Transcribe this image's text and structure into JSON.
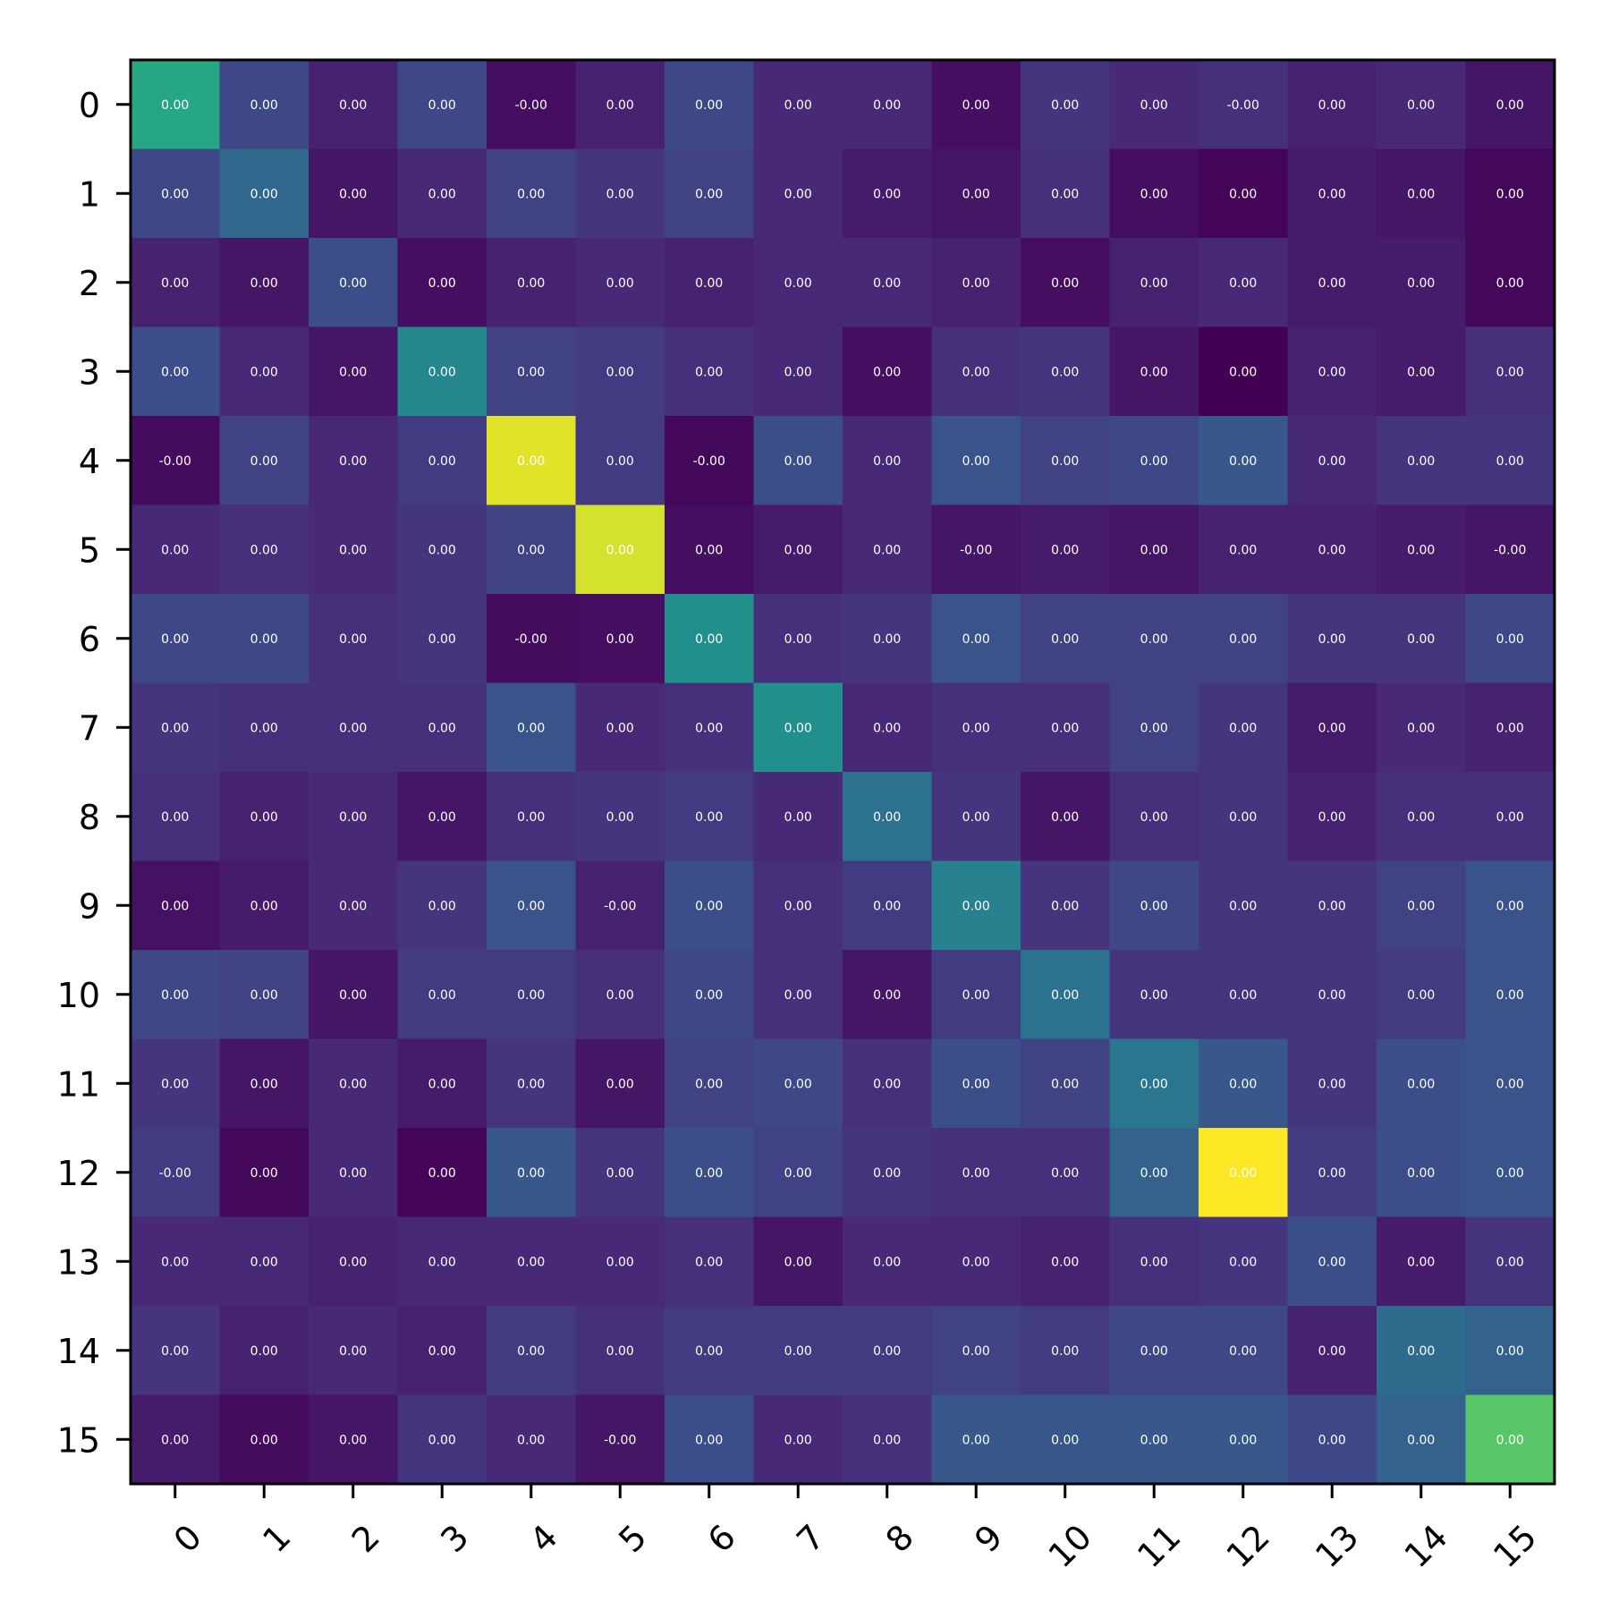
{
  "chart_data": {
    "type": "heatmap",
    "colormap": "viridis",
    "x_categories": [
      "0",
      "1",
      "2",
      "3",
      "4",
      "5",
      "6",
      "7",
      "8",
      "9",
      "10",
      "11",
      "12",
      "13",
      "14",
      "15"
    ],
    "y_categories": [
      "0",
      "1",
      "2",
      "3",
      "4",
      "5",
      "6",
      "7",
      "8",
      "9",
      "10",
      "11",
      "12",
      "13",
      "14",
      "15"
    ],
    "intensity": [
      [
        0.6,
        0.22,
        0.1,
        0.22,
        0.04,
        0.1,
        0.22,
        0.12,
        0.12,
        0.04,
        0.16,
        0.12,
        0.14,
        0.1,
        0.12,
        0.06
      ],
      [
        0.22,
        0.34,
        0.06,
        0.12,
        0.2,
        0.16,
        0.2,
        0.12,
        0.08,
        0.06,
        0.14,
        0.04,
        0.01,
        0.08,
        0.06,
        0.02
      ],
      [
        0.1,
        0.06,
        0.24,
        0.04,
        0.1,
        0.12,
        0.1,
        0.12,
        0.12,
        0.1,
        0.04,
        0.1,
        0.12,
        0.08,
        0.08,
        0.02
      ],
      [
        0.24,
        0.12,
        0.06,
        0.46,
        0.2,
        0.18,
        0.14,
        0.12,
        0.04,
        0.14,
        0.16,
        0.06,
        0.0,
        0.1,
        0.08,
        0.14
      ],
      [
        0.03,
        0.2,
        0.12,
        0.18,
        0.96,
        0.18,
        0.02,
        0.24,
        0.12,
        0.26,
        0.2,
        0.22,
        0.28,
        0.12,
        0.16,
        0.16
      ],
      [
        0.12,
        0.14,
        0.12,
        0.16,
        0.2,
        0.94,
        0.04,
        0.08,
        0.12,
        0.06,
        0.08,
        0.06,
        0.1,
        0.1,
        0.08,
        0.06
      ],
      [
        0.22,
        0.22,
        0.14,
        0.16,
        0.03,
        0.04,
        0.5,
        0.14,
        0.16,
        0.26,
        0.2,
        0.2,
        0.2,
        0.16,
        0.16,
        0.22
      ],
      [
        0.16,
        0.14,
        0.14,
        0.14,
        0.26,
        0.12,
        0.14,
        0.5,
        0.12,
        0.14,
        0.14,
        0.2,
        0.16,
        0.08,
        0.12,
        0.1
      ],
      [
        0.14,
        0.1,
        0.12,
        0.06,
        0.14,
        0.16,
        0.18,
        0.12,
        0.38,
        0.16,
        0.06,
        0.14,
        0.16,
        0.1,
        0.14,
        0.14
      ],
      [
        0.05,
        0.08,
        0.12,
        0.16,
        0.26,
        0.1,
        0.24,
        0.14,
        0.18,
        0.44,
        0.16,
        0.22,
        0.16,
        0.16,
        0.2,
        0.26
      ],
      [
        0.22,
        0.2,
        0.06,
        0.18,
        0.18,
        0.14,
        0.22,
        0.14,
        0.06,
        0.18,
        0.38,
        0.16,
        0.16,
        0.16,
        0.18,
        0.26
      ],
      [
        0.16,
        0.06,
        0.12,
        0.08,
        0.16,
        0.06,
        0.2,
        0.22,
        0.14,
        0.24,
        0.2,
        0.4,
        0.28,
        0.16,
        0.24,
        0.26
      ],
      [
        0.18,
        0.02,
        0.12,
        0.01,
        0.28,
        0.16,
        0.24,
        0.2,
        0.16,
        0.14,
        0.14,
        0.32,
        1.0,
        0.18,
        0.24,
        0.26
      ],
      [
        0.12,
        0.12,
        0.1,
        0.12,
        0.12,
        0.12,
        0.14,
        0.06,
        0.12,
        0.12,
        0.1,
        0.14,
        0.16,
        0.24,
        0.08,
        0.16
      ],
      [
        0.16,
        0.1,
        0.12,
        0.1,
        0.18,
        0.14,
        0.18,
        0.18,
        0.18,
        0.2,
        0.18,
        0.22,
        0.22,
        0.1,
        0.36,
        0.32
      ],
      [
        0.08,
        0.03,
        0.06,
        0.16,
        0.12,
        0.06,
        0.24,
        0.12,
        0.14,
        0.28,
        0.28,
        0.28,
        0.28,
        0.22,
        0.32,
        0.74
      ]
    ],
    "cell_labels": [
      [
        "0.00",
        "0.00",
        "0.00",
        "0.00",
        "-0.00",
        "0.00",
        "0.00",
        "0.00",
        "0.00",
        "0.00",
        "0.00",
        "0.00",
        "-0.00",
        "0.00",
        "0.00",
        "0.00"
      ],
      [
        "0.00",
        "0.00",
        "0.00",
        "0.00",
        "0.00",
        "0.00",
        "0.00",
        "0.00",
        "0.00",
        "0.00",
        "0.00",
        "0.00",
        "0.00",
        "0.00",
        "0.00",
        "0.00"
      ],
      [
        "0.00",
        "0.00",
        "0.00",
        "0.00",
        "0.00",
        "0.00",
        "0.00",
        "0.00",
        "0.00",
        "0.00",
        "0.00",
        "0.00",
        "0.00",
        "0.00",
        "0.00",
        "0.00"
      ],
      [
        "0.00",
        "0.00",
        "0.00",
        "0.00",
        "0.00",
        "0.00",
        "0.00",
        "0.00",
        "0.00",
        "0.00",
        "0.00",
        "0.00",
        "0.00",
        "0.00",
        "0.00",
        "0.00"
      ],
      [
        "-0.00",
        "0.00",
        "0.00",
        "0.00",
        "0.00",
        "0.00",
        "-0.00",
        "0.00",
        "0.00",
        "0.00",
        "0.00",
        "0.00",
        "0.00",
        "0.00",
        "0.00",
        "0.00"
      ],
      [
        "0.00",
        "0.00",
        "0.00",
        "0.00",
        "0.00",
        "0.00",
        "0.00",
        "0.00",
        "0.00",
        "-0.00",
        "0.00",
        "0.00",
        "0.00",
        "0.00",
        "0.00",
        "-0.00"
      ],
      [
        "0.00",
        "0.00",
        "0.00",
        "0.00",
        "-0.00",
        "0.00",
        "0.00",
        "0.00",
        "0.00",
        "0.00",
        "0.00",
        "0.00",
        "0.00",
        "0.00",
        "0.00",
        "0.00"
      ],
      [
        "0.00",
        "0.00",
        "0.00",
        "0.00",
        "0.00",
        "0.00",
        "0.00",
        "0.00",
        "0.00",
        "0.00",
        "0.00",
        "0.00",
        "0.00",
        "0.00",
        "0.00",
        "0.00"
      ],
      [
        "0.00",
        "0.00",
        "0.00",
        "0.00",
        "0.00",
        "0.00",
        "0.00",
        "0.00",
        "0.00",
        "0.00",
        "0.00",
        "0.00",
        "0.00",
        "0.00",
        "0.00",
        "0.00"
      ],
      [
        "0.00",
        "0.00",
        "0.00",
        "0.00",
        "0.00",
        "-0.00",
        "0.00",
        "0.00",
        "0.00",
        "0.00",
        "0.00",
        "0.00",
        "0.00",
        "0.00",
        "0.00",
        "0.00"
      ],
      [
        "0.00",
        "0.00",
        "0.00",
        "0.00",
        "0.00",
        "0.00",
        "0.00",
        "0.00",
        "0.00",
        "0.00",
        "0.00",
        "0.00",
        "0.00",
        "0.00",
        "0.00",
        "0.00"
      ],
      [
        "0.00",
        "0.00",
        "0.00",
        "0.00",
        "0.00",
        "0.00",
        "0.00",
        "0.00",
        "0.00",
        "0.00",
        "0.00",
        "0.00",
        "0.00",
        "0.00",
        "0.00",
        "0.00"
      ],
      [
        "-0.00",
        "0.00",
        "0.00",
        "0.00",
        "0.00",
        "0.00",
        "0.00",
        "0.00",
        "0.00",
        "0.00",
        "0.00",
        "0.00",
        "0.00",
        "0.00",
        "0.00",
        "0.00"
      ],
      [
        "0.00",
        "0.00",
        "0.00",
        "0.00",
        "0.00",
        "0.00",
        "0.00",
        "0.00",
        "0.00",
        "0.00",
        "0.00",
        "0.00",
        "0.00",
        "0.00",
        "0.00",
        "0.00"
      ],
      [
        "0.00",
        "0.00",
        "0.00",
        "0.00",
        "0.00",
        "0.00",
        "0.00",
        "0.00",
        "0.00",
        "0.00",
        "0.00",
        "0.00",
        "0.00",
        "0.00",
        "0.00",
        "0.00"
      ],
      [
        "0.00",
        "0.00",
        "0.00",
        "0.00",
        "0.00",
        "-0.00",
        "0.00",
        "0.00",
        "0.00",
        "0.00",
        "0.00",
        "0.00",
        "0.00",
        "0.00",
        "0.00",
        "0.00"
      ]
    ],
    "title": "",
    "xlabel": "",
    "ylabel": "",
    "colorbar": false,
    "grid": false
  }
}
